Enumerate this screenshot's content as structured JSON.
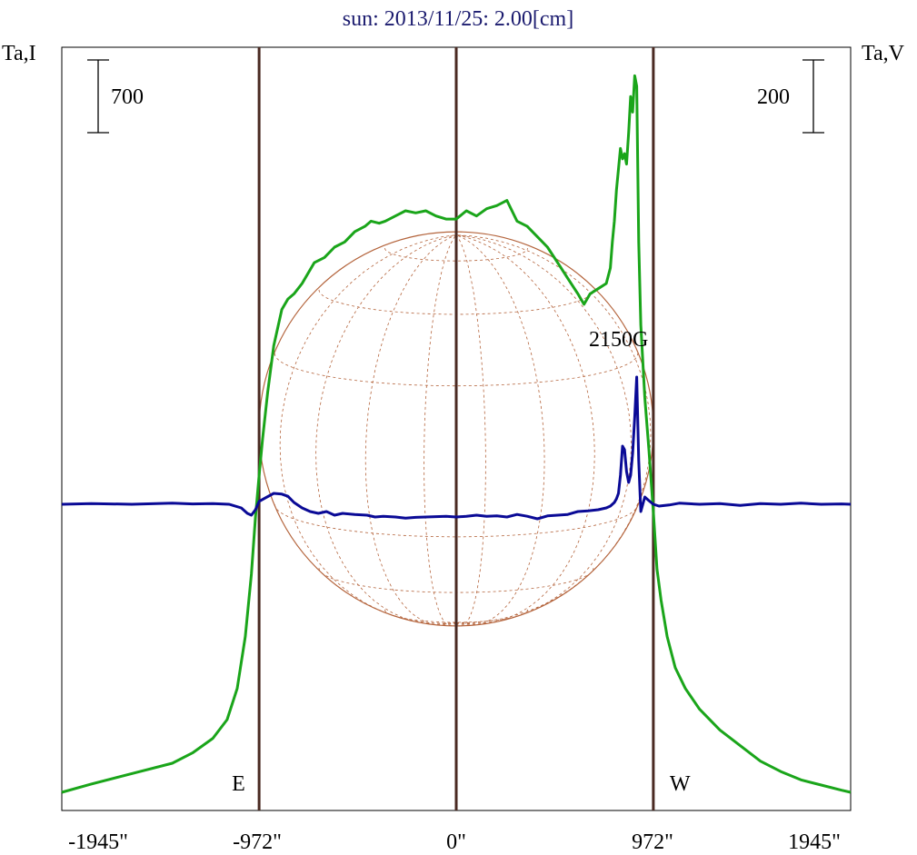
{
  "chart_data": {
    "type": "line",
    "title": "sun: 2013/11/25: 2.00[cm]",
    "ylabel_left": "Ta,I",
    "ylabel_right": "Ta,V",
    "xlim": [
      -1945,
      1945
    ],
    "x_ticks": [
      "-1945\"",
      "-972\"",
      "0\"",
      "972\"",
      "1945\""
    ],
    "x_tick_values": [
      -1945,
      -972,
      0,
      972,
      1945
    ],
    "limb_markers": [
      {
        "x": -972,
        "label": "E"
      },
      {
        "x": 0,
        "label": ""
      },
      {
        "x": 972,
        "label": "W"
      }
    ],
    "scale_bars": {
      "left": {
        "label": "700",
        "value": 700
      },
      "right": {
        "label": "200",
        "value": 200
      }
    },
    "annotation": "2150G",
    "annotation_x": 880,
    "axes_ranges": {
      "I": [
        0,
        7000
      ],
      "V": [
        -1050,
        1050
      ]
    },
    "solar_disk_radius": 972,
    "colors": {
      "I": "#1aa51a",
      "V": "#0a0a96",
      "title": "#1a1a6e",
      "disk": "#b4643c",
      "markers": "#4a2a22"
    },
    "series": [
      {
        "name": "I",
        "axis": "left",
        "x": [
          -1945,
          -1800,
          -1600,
          -1400,
          -1300,
          -1200,
          -1130,
          -1080,
          -1040,
          -1010,
          -990,
          -972,
          -955,
          -930,
          -900,
          -860,
          -830,
          -800,
          -760,
          -700,
          -650,
          -600,
          -550,
          -500,
          -450,
          -420,
          -380,
          -350,
          -300,
          -250,
          -200,
          -150,
          -100,
          -50,
          0,
          50,
          100,
          150,
          200,
          250,
          300,
          350,
          400,
          450,
          500,
          550,
          600,
          630,
          660,
          700,
          740,
          760,
          770,
          780,
          790,
          800,
          810,
          820,
          830,
          840,
          850,
          860,
          870,
          880,
          890,
          900,
          910,
          930,
          950,
          972,
          990,
          1010,
          1040,
          1080,
          1130,
          1200,
          1300,
          1400,
          1500,
          1600,
          1700,
          1800,
          1900,
          1945
        ],
        "y": [
          0,
          80,
          180,
          280,
          380,
          520,
          700,
          1000,
          1500,
          2100,
          2650,
          3050,
          3400,
          3850,
          4300,
          4650,
          4750,
          4800,
          4900,
          5100,
          5150,
          5250,
          5300,
          5400,
          5450,
          5500,
          5480,
          5500,
          5550,
          5600,
          5580,
          5600,
          5550,
          5520,
          5520,
          5600,
          5550,
          5620,
          5650,
          5700,
          5500,
          5450,
          5350,
          5250,
          5100,
          4950,
          4800,
          4700,
          4800,
          4850,
          4900,
          5050,
          5300,
          5500,
          5800,
          6000,
          6200,
          6100,
          6150,
          6050,
          6350,
          6700,
          6550,
          6900,
          6800,
          5300,
          4500,
          3800,
          3300,
          2700,
          2150,
          1850,
          1500,
          1200,
          1000,
          800,
          600,
          450,
          300,
          200,
          120,
          70,
          20,
          0
        ]
      },
      {
        "name": "V",
        "axis": "right",
        "x": [
          -1945,
          -1800,
          -1600,
          -1400,
          -1300,
          -1200,
          -1120,
          -1060,
          -1030,
          -1010,
          -990,
          -972,
          -940,
          -900,
          -860,
          -830,
          -800,
          -760,
          -720,
          -680,
          -640,
          -600,
          -560,
          -500,
          -440,
          -400,
          -360,
          -300,
          -250,
          -200,
          -150,
          -100,
          -50,
          0,
          50,
          100,
          150,
          200,
          250,
          300,
          350,
          400,
          450,
          500,
          550,
          600,
          650,
          700,
          740,
          760,
          780,
          790,
          800,
          810,
          820,
          830,
          840,
          850,
          860,
          870,
          880,
          890,
          900,
          910,
          930,
          950,
          972,
          1000,
          1050,
          1100,
          1200,
          1300,
          1400,
          1500,
          1600,
          1700,
          1800,
          1900,
          1945
        ],
        "y": [
          0,
          2,
          0,
          3,
          1,
          2,
          0,
          -10,
          -25,
          -30,
          -15,
          8,
          18,
          30,
          28,
          22,
          5,
          -10,
          -20,
          -25,
          -20,
          -30,
          -25,
          -28,
          -30,
          -35,
          -33,
          -35,
          -38,
          -36,
          -35,
          -34,
          -33,
          -35,
          -33,
          -30,
          -33,
          -32,
          -35,
          -28,
          -33,
          -40,
          -32,
          -30,
          -28,
          -20,
          -18,
          -15,
          -10,
          -5,
          5,
          15,
          30,
          80,
          160,
          150,
          90,
          60,
          80,
          140,
          240,
          350,
          120,
          -20,
          20,
          10,
          0,
          -5,
          -2,
          3,
          0,
          2,
          -3,
          2,
          0,
          3,
          0,
          1,
          0
        ]
      }
    ]
  }
}
